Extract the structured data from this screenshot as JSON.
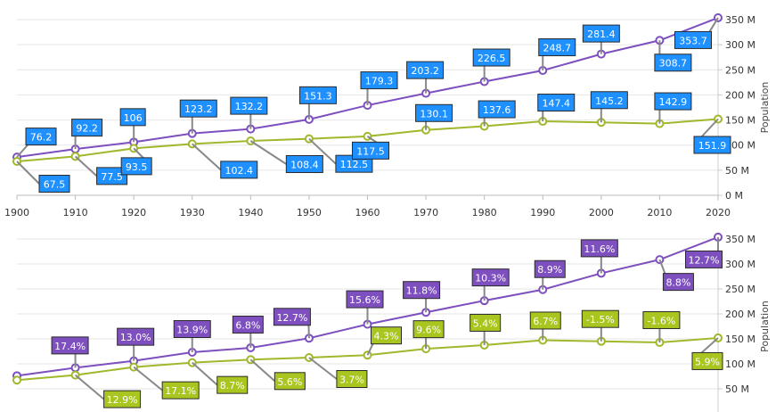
{
  "chart_data": [
    {
      "type": "line",
      "label_style": "value",
      "x": [
        1900,
        1910,
        1920,
        1930,
        1940,
        1950,
        1960,
        1970,
        1980,
        1990,
        2000,
        2010,
        2020
      ],
      "xlim": [
        1900,
        2020
      ],
      "ylim": [
        0,
        350
      ],
      "x_ticks": [
        "1900",
        "1910",
        "1920",
        "1930",
        "1940",
        "1950",
        "1960",
        "1970",
        "1980",
        "1990",
        "2000",
        "2010",
        "2020"
      ],
      "y_ticks": [
        {
          "value": 0,
          "label": "0 M"
        },
        {
          "value": 50,
          "label": "50 M"
        },
        {
          "value": 100,
          "label": "100 M"
        },
        {
          "value": 150,
          "label": "150 M"
        },
        {
          "value": 200,
          "label": "200 M"
        },
        {
          "value": 250,
          "label": "250 M"
        },
        {
          "value": 300,
          "label": "300 M"
        },
        {
          "value": 350,
          "label": "350 M"
        }
      ],
      "ylabel": "Population",
      "grid": true,
      "series": [
        {
          "color": "#7e4fbf",
          "label_color": "#1e90ff",
          "values": [
            76.2,
            92.2,
            106,
            123.2,
            132.2,
            151.3,
            179.3,
            203.2,
            226.5,
            248.7,
            281.4,
            308.7,
            353.7
          ],
          "labels": [
            "76.2",
            "92.2",
            "106",
            "123.2",
            "132.2",
            "151.3",
            "179.3",
            "203.2",
            "226.5",
            "248.7",
            "281.4",
            "308.7",
            "353.7"
          ]
        },
        {
          "color": "#9fb82c",
          "label_color": "#1e90ff",
          "values": [
            67.5,
            77.5,
            93.5,
            102.4,
            108.4,
            112.5,
            117.5,
            130.1,
            137.6,
            147.4,
            145.2,
            142.9,
            151.9
          ],
          "labels": [
            "67.5",
            "77.5",
            "93.5",
            "102.4",
            "108.4",
            "112.5",
            "117.5",
            "130.1",
            "137.6",
            "147.4",
            "145.2",
            "142.9",
            "151.9"
          ]
        }
      ]
    },
    {
      "type": "line",
      "label_style": "percent-change",
      "x": [
        1900,
        1910,
        1920,
        1930,
        1940,
        1950,
        1960,
        1970,
        1980,
        1990,
        2000,
        2010,
        2020
      ],
      "xlim": [
        1900,
        2020
      ],
      "ylim": [
        0,
        350
      ],
      "y_ticks": [
        {
          "value": 50,
          "label": "50 M"
        },
        {
          "value": 100,
          "label": "100 M"
        },
        {
          "value": 150,
          "label": "150 M"
        },
        {
          "value": 200,
          "label": "200 M"
        },
        {
          "value": 250,
          "label": "250 M"
        },
        {
          "value": 300,
          "label": "300 M"
        },
        {
          "value": 350,
          "label": "350 M"
        }
      ],
      "ylabel": "Population",
      "grid": true,
      "series": [
        {
          "color": "#7e4fbf",
          "label_color": "#7e4fbf",
          "values": [
            76.2,
            92.2,
            106,
            123.2,
            132.2,
            151.3,
            179.3,
            203.2,
            226.5,
            248.7,
            281.4,
            308.7,
            353.7
          ],
          "labels": [
            "",
            "17.4%",
            "13.0%",
            "13.9%",
            "6.8%",
            "12.7%",
            "15.6%",
            "11.8%",
            "10.3%",
            "8.9%",
            "11.6%",
            "8.8%",
            "12.7%"
          ]
        },
        {
          "color": "#9fb82c",
          "label_color": "#a9c51f",
          "values": [
            67.5,
            77.5,
            93.5,
            102.4,
            108.4,
            112.5,
            117.5,
            130.1,
            137.6,
            147.4,
            145.2,
            142.9,
            151.9
          ],
          "labels": [
            "",
            "12.9%",
            "17.1%",
            "8.7%",
            "5.6%",
            "3.7%",
            "4.3%",
            "9.6%",
            "5.4%",
            "6.7%",
            "-1.5%",
            "-1.6%",
            "5.9%"
          ]
        }
      ]
    }
  ]
}
